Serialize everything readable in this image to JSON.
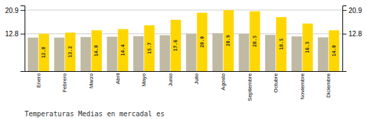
{
  "chart_data": {
    "type": "bar",
    "title": "Temperaturas Medias en mercadal es",
    "categories": [
      "Enero",
      "Febrero",
      "Marzo",
      "Abril",
      "Mayo",
      "Junio",
      "Julio",
      "Agosto",
      "Septiembre",
      "Octubre",
      "Noviembre",
      "Diciembre"
    ],
    "series": [
      {
        "color": "#C0BAA4",
        "values": [
          11.5,
          11.5,
          11.7,
          11.8,
          12.0,
          12.3,
          12.8,
          13.0,
          12.8,
          12.4,
          11.9,
          11.6
        ]
      },
      {
        "color": "#FFD700",
        "values": [
          12.8,
          13.2,
          14.0,
          14.4,
          15.7,
          17.6,
          20.0,
          20.9,
          20.5,
          18.5,
          16.3,
          14.0
        ],
        "data_labels": true,
        "value_labels": [
          "12.8",
          "13.2",
          "14.0",
          "14.4",
          "15.7",
          "17.6",
          "20.0",
          "20.9",
          "20.5",
          "18.5",
          "16.3",
          "14.0"
        ]
      }
    ],
    "ylim": [
      0,
      22.5
    ],
    "yticks": [
      12.8,
      20.9
    ],
    "y2lim": [
      0,
      22.5
    ],
    "y2ticks": [
      12.8,
      20.9
    ],
    "grid": true
  }
}
